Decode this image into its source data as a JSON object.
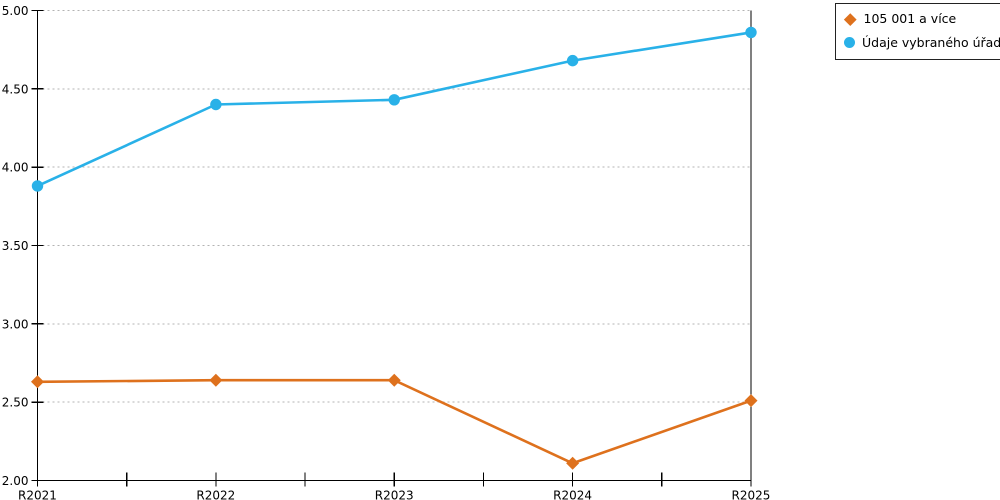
{
  "chart_data": {
    "type": "line",
    "title": "",
    "xlabel": "",
    "ylabel": "",
    "categories": [
      "R2021",
      "R2022",
      "R2023",
      "R2024",
      "R2025"
    ],
    "series": [
      {
        "name": "105 001 a více",
        "marker": "diamond",
        "color": "#DE711D",
        "values": [
          2.63,
          2.64,
          2.64,
          2.11,
          2.51
        ]
      },
      {
        "name": "Údaje vybraného úřadu",
        "marker": "circle",
        "color": "#29B1E8",
        "values": [
          3.88,
          4.4,
          4.43,
          4.68,
          4.86
        ]
      }
    ],
    "ylim": [
      2.0,
      5.0
    ],
    "ytick_step": 0.5,
    "ytick_labels": [
      "2.00",
      "2.50",
      "3.00",
      "3.50",
      "4.00",
      "4.50",
      "5.00"
    ],
    "grid": "horizontal-dotted",
    "grid_color": "#B3B3B3",
    "axis_color": "#000000",
    "legend_position": "top-right"
  },
  "legend": {
    "items": [
      {
        "label": "105 001 a více"
      },
      {
        "label": "Údaje vybraného úřadu"
      }
    ]
  }
}
